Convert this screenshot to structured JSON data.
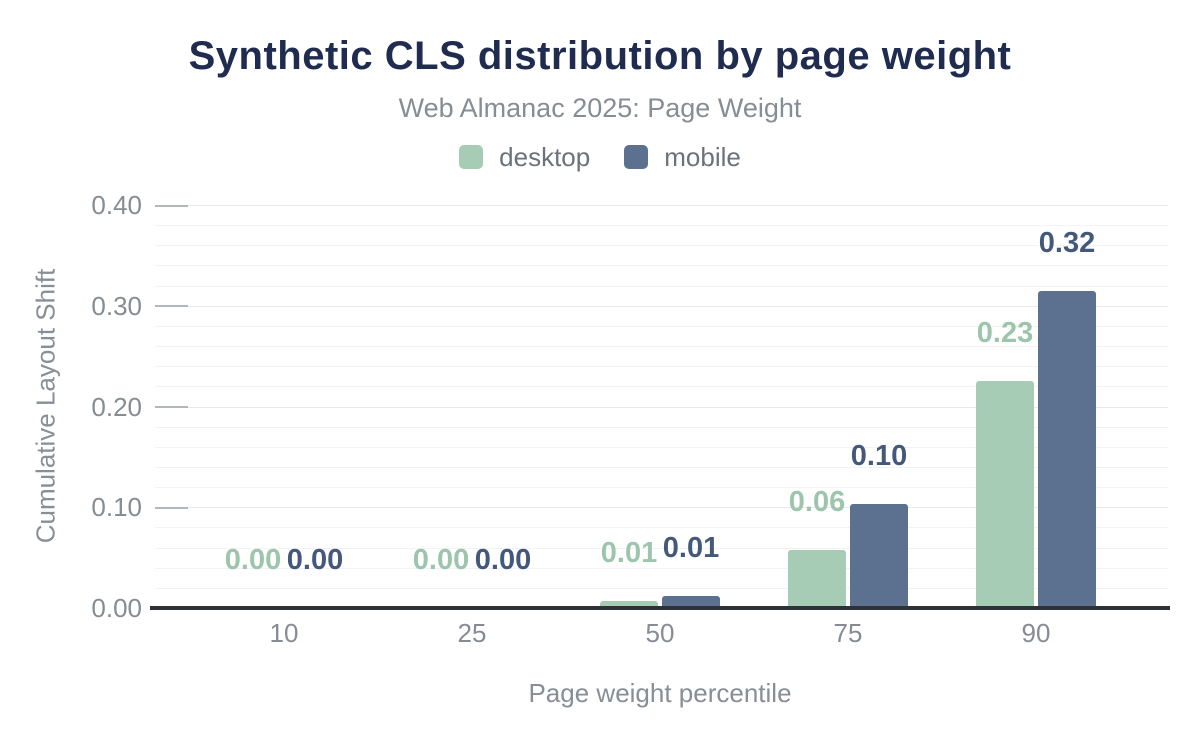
{
  "title": "Synthetic CLS distribution by page weight",
  "subtitle": "Web Almanac 2025: Page Weight",
  "colors": {
    "title": "#1f2c4f",
    "subtitle": "#868d95",
    "legend_text": "#6c727b",
    "axis_tick_text": "#868c93",
    "axis_name_text": "#878e96",
    "axis_line": "#2e3237",
    "gridline_major": "#e7eaee",
    "gridline_minor": "#f2f3f6",
    "tick_stub": "#b2b6bd",
    "background": "#ffffff"
  },
  "chart_data": {
    "type": "bar",
    "title": "Synthetic CLS distribution by page weight",
    "subtitle": "Web Almanac 2025: Page Weight",
    "xlabel": "Page weight percentile",
    "ylabel": "Cumulative Layout Shift",
    "categories": [
      "10",
      "25",
      "50",
      "75",
      "90"
    ],
    "series": [
      {
        "name": "desktop",
        "color": "#a7ccb5",
        "label_color": "#9cc5ab",
        "values": [
          0.0,
          0.0,
          0.007,
          0.058,
          0.225
        ],
        "labels": [
          "0.00",
          "0.00",
          "0.01",
          "0.06",
          "0.23"
        ]
      },
      {
        "name": "mobile",
        "color": "#5c7090",
        "label_color": "#44587c",
        "values": [
          0.0,
          0.0,
          0.012,
          0.103,
          0.315
        ],
        "labels": [
          "0.00",
          "0.00",
          "0.01",
          "0.10",
          "0.32"
        ]
      }
    ],
    "ylim": [
      0.0,
      0.4
    ],
    "ytick_labels": [
      "0.00",
      "0.10",
      "0.20",
      "0.30",
      "0.40"
    ],
    "ytick_values": [
      0.0,
      0.1,
      0.2,
      0.3,
      0.4
    ],
    "grid": {
      "on": true,
      "minor_interval": 0.02,
      "major_interval": 0.1
    },
    "legend_position": "top",
    "data_labels_shown": true
  }
}
